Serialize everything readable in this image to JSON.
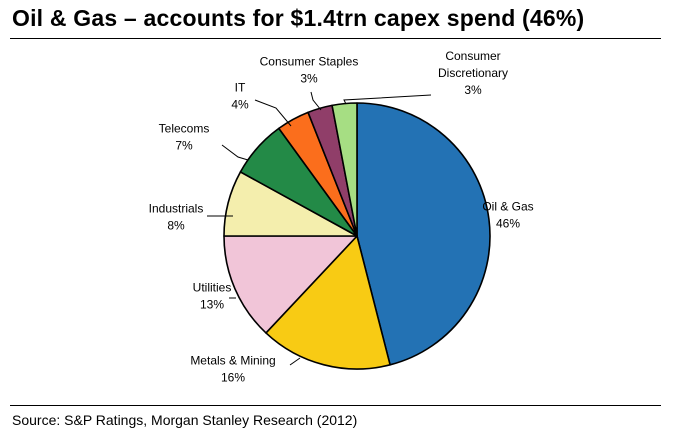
{
  "title": "Oil & Gas – accounts for $1.4trn capex spend (46%)",
  "source": "Source: S&P Ratings, Morgan Stanley Research (2012)",
  "chart_data": {
    "type": "pie",
    "title": "",
    "unit": "%",
    "slices": [
      {
        "name": "Oil & Gas",
        "lines": [
          "Oil & Gas"
        ],
        "value": 46,
        "value_label": "46%",
        "color": "#2372B4"
      },
      {
        "name": "Metals & Mining",
        "lines": [
          "Metals & Mining"
        ],
        "value": 16,
        "value_label": "16%",
        "color": "#F8CB14"
      },
      {
        "name": "Utilities",
        "lines": [
          "Utilities"
        ],
        "value": 13,
        "value_label": "13%",
        "color": "#F1C5D8"
      },
      {
        "name": "Industrials",
        "lines": [
          "Industrials"
        ],
        "value": 8,
        "value_label": "8%",
        "color": "#F4EEAD"
      },
      {
        "name": "Telecoms",
        "lines": [
          "Telecoms"
        ],
        "value": 7,
        "value_label": "7%",
        "color": "#238A47"
      },
      {
        "name": "IT",
        "lines": [
          "IT"
        ],
        "value": 4,
        "value_label": "4%",
        "color": "#FB6E1C"
      },
      {
        "name": "Consumer Staples",
        "lines": [
          "Consumer Staples"
        ],
        "value": 3,
        "value_label": "3%",
        "color": "#903E69"
      },
      {
        "name": "Consumer Discretionary",
        "lines": [
          "Consumer",
          "Discretionary"
        ],
        "value": 3,
        "value_label": "3%",
        "color": "#A6DE83"
      }
    ]
  }
}
